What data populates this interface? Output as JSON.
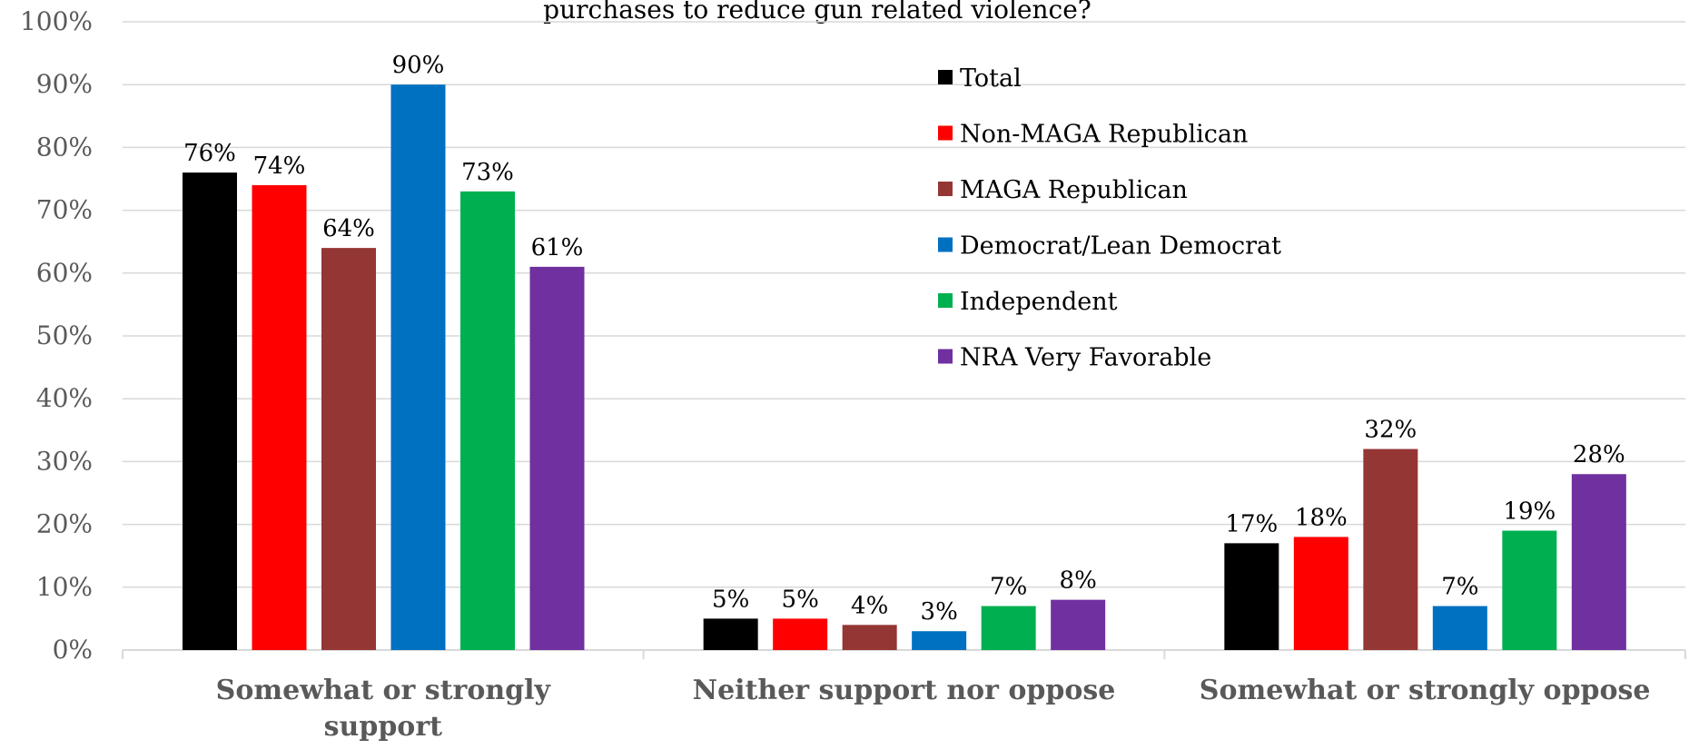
{
  "chart_data": {
    "type": "bar",
    "title": "purchases to reduce gun related violence?",
    "categories": [
      [
        "Somewhat or strongly",
        "support"
      ],
      [
        "Neither support nor oppose"
      ],
      [
        "Somewhat or strongly oppose"
      ]
    ],
    "series": [
      {
        "name": "Total",
        "color": "#000000",
        "values": [
          76,
          5,
          17
        ],
        "labels": [
          "76%",
          "5%",
          "17%"
        ]
      },
      {
        "name": "Non-MAGA Republican",
        "color": "#ff0000",
        "values": [
          74,
          5,
          18
        ],
        "labels": [
          "74%",
          "5%",
          "18%"
        ]
      },
      {
        "name": "MAGA Republican",
        "color": "#943634",
        "values": [
          64,
          4,
          32
        ],
        "labels": [
          "64%",
          "4%",
          "32%"
        ]
      },
      {
        "name": "Democrat/Lean Democrat",
        "color": "#0070c0",
        "values": [
          90,
          3,
          7
        ],
        "labels": [
          "90%",
          "3%",
          "7%"
        ]
      },
      {
        "name": "Independent",
        "color": "#00b050",
        "values": [
          73,
          7,
          19
        ],
        "labels": [
          "73%",
          "7%",
          "19%"
        ]
      },
      {
        "name": "NRA Very Favorable",
        "color": "#7030a0",
        "values": [
          61,
          8,
          28
        ],
        "labels": [
          "61%",
          "8%",
          "28%"
        ]
      }
    ],
    "ylim": [
      0,
      100
    ],
    "yticks": [
      0,
      10,
      20,
      30,
      40,
      50,
      60,
      70,
      80,
      90,
      100
    ],
    "ytick_labels": [
      "0%",
      "10%",
      "20%",
      "30%",
      "40%",
      "50%",
      "60%",
      "70%",
      "80%",
      "90%",
      "100%"
    ],
    "grid": true,
    "legend_position": "top-center"
  }
}
